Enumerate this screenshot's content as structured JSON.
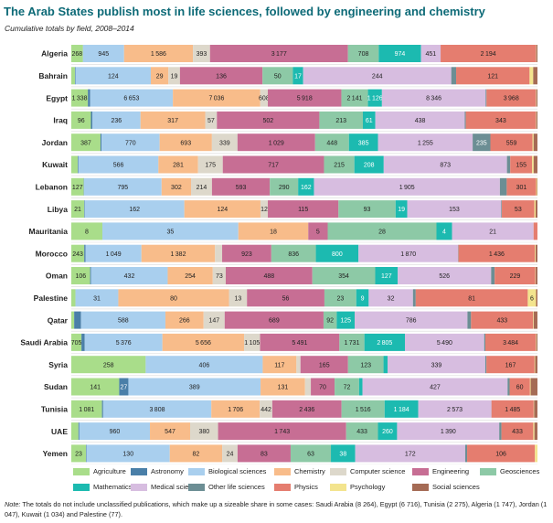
{
  "title": "The Arab States publish most in life sciences, followed by engineering and chemistry",
  "subtitle": "Cumulative totals by field, 2008–2014",
  "note": {
    "label": "Note:",
    "text": "The totals do not include unclassified publications, which make up a sizeable share in some cases: Saudi Arabia (8 264), Egypt (6 716), Tunisia (2 275), Algeria (1 747), Jordan (1 047), Kuwait (1 034) and Palestine (77)."
  },
  "colors": {
    "Agriculture": "#a9dd8a",
    "Astronomy": "#4a7fa8",
    "Biological sciences": "#a9cfee",
    "Chemistry": "#f8bc8a",
    "Computer science": "#ddd8cb",
    "Engineering": "#c76e94",
    "Geosciences": "#8dc9a6",
    "Mathematics": "#1cbab0",
    "Medical sciences": "#d7bde0",
    "Other life sciences": "#6c8e94",
    "Physics": "#e57d6f",
    "Psychology": "#f3e48e",
    "Social sciences": "#a56b55"
  },
  "chart_data": {
    "type": "bar",
    "orientation": "horizontal",
    "stacked": true,
    "normalized": "percent",
    "series_order": [
      "Agriculture",
      "Astronomy",
      "Biological sciences",
      "Chemistry",
      "Computer science",
      "Engineering",
      "Geosciences",
      "Mathematics",
      "Medical sciences",
      "Other life sciences",
      "Physics",
      "Psychology",
      "Social sciences"
    ],
    "legend_order": [
      "Agriculture",
      "Astronomy",
      "Biological sciences",
      "Chemistry",
      "Computer science",
      "Engineering",
      "Geosciences",
      "Mathematics",
      "Medical sciences",
      "Other life sciences",
      "Physics",
      "Psychology",
      "Social sciences"
    ],
    "legend_position": "bottom",
    "rows": [
      {
        "country": "Algeria",
        "values": [
          268,
          2,
          945,
          1586,
          393,
          3177,
          708,
          974,
          451,
          0,
          2194,
          7,
          29
        ]
      },
      {
        "country": "Bahrain",
        "values": [
          6,
          1,
          124,
          29,
          19,
          136,
          50,
          17,
          244,
          8,
          121,
          6,
          7
        ]
      },
      {
        "country": "Egypt",
        "values": [
          1338,
          185,
          6653,
          7036,
          608,
          5918,
          2141,
          1126,
          8346,
          72,
          3968,
          36,
          96
        ]
      },
      {
        "country": "Iraq",
        "values": [
          96,
          7,
          236,
          317,
          57,
          502,
          213,
          61,
          438,
          5,
          343,
          2,
          6
        ]
      },
      {
        "country": "Jordan",
        "values": [
          387,
          14,
          770,
          693,
          339,
          1029,
          448,
          385,
          1255,
          235,
          559,
          14,
          51
        ]
      },
      {
        "country": "Kuwait",
        "values": [
          46,
          5,
          566,
          281,
          175,
          717,
          215,
          208,
          873,
          23,
          155,
          11,
          27
        ]
      },
      {
        "country": "Lebanon",
        "values": [
          127,
          3,
          795,
          302,
          214,
          593,
          290,
          162,
          1905,
          70,
          301,
          9,
          5
        ]
      },
      {
        "country": "Libya",
        "values": [
          21,
          1,
          162,
          124,
          12,
          115,
          93,
          19,
          153,
          1,
          53,
          2,
          3
        ]
      },
      {
        "country": "Mauritania",
        "values": [
          8,
          0,
          35,
          18,
          0,
          5,
          28,
          4,
          21,
          0,
          1,
          0,
          0
        ]
      },
      {
        "country": "Morocco",
        "values": [
          243,
          24,
          1049,
          1382,
          133,
          923,
          836,
          800,
          1870,
          6,
          1436,
          13,
          34
        ]
      },
      {
        "country": "Oman",
        "values": [
          106,
          5,
          432,
          254,
          73,
          488,
          354,
          127,
          526,
          20,
          229,
          2,
          10
        ]
      },
      {
        "country": "Palestine",
        "values": [
          3,
          0,
          31,
          80,
          13,
          56,
          23,
          9,
          32,
          2,
          81,
          6,
          1
        ]
      },
      {
        "country": "Qatar",
        "values": [
          20,
          48,
          588,
          266,
          147,
          689,
          92,
          125,
          786,
          25,
          433,
          4,
          26
        ]
      },
      {
        "country": "Saudi Arabia",
        "values": [
          705,
          226,
          5376,
          5656,
          1105,
          5491,
          1731,
          2805,
          5490,
          80,
          3484,
          38,
          83
        ]
      },
      {
        "country": "Syria",
        "values": [
          258,
          0,
          406,
          117,
          14,
          165,
          123,
          14,
          339,
          4,
          167,
          2,
          8
        ]
      },
      {
        "country": "Sudan",
        "values": [
          141,
          27,
          389,
          131,
          17,
          70,
          72,
          10,
          427,
          6,
          60,
          2,
          20
        ]
      },
      {
        "country": "Tunisia",
        "values": [
          1081,
          40,
          3808,
          1706,
          442,
          2436,
          1516,
          1184,
          2573,
          6,
          1485,
          16,
          117
        ]
      },
      {
        "country": "UAE",
        "values": [
          97,
          13,
          960,
          547,
          380,
          1743,
          433,
          260,
          1390,
          30,
          433,
          16,
          41
        ]
      },
      {
        "country": "Yemen",
        "values": [
          23,
          1,
          130,
          82,
          24,
          83,
          63,
          38,
          172,
          3,
          106,
          4,
          0
        ]
      }
    ]
  }
}
